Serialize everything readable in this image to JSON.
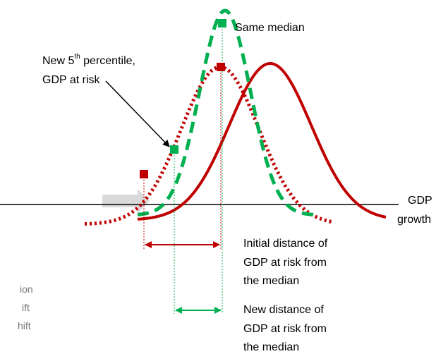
{
  "labels": {
    "same_median": "Same median",
    "new_percentile": {
      "before": "New 5",
      "superscript": "th",
      "after": " percentile,",
      "line2": "GDP at risk"
    },
    "axis": [
      "GDP",
      "growth"
    ],
    "initial_distance": [
      "Initial distance of",
      "GDP at risk from",
      "the median"
    ],
    "new_distance": [
      "New distance of",
      "GDP at risk from",
      "the median"
    ],
    "legend": [
      "ion",
      "ift",
      "hift"
    ]
  }
}
